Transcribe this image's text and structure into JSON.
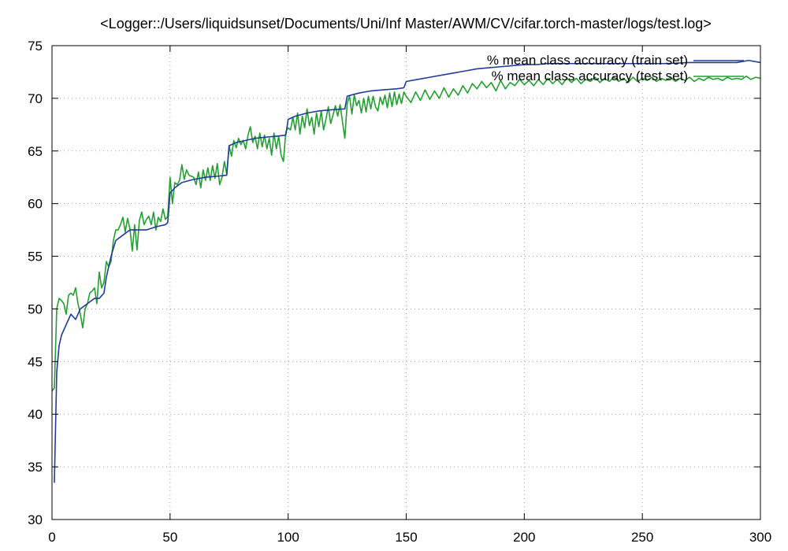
{
  "chart_data": {
    "type": "line",
    "title": "<Logger::/Users/liquidsunset/Documents/Uni/Inf Master/AWM/CV/cifar.torch-master/logs/test.log>",
    "xlabel": "",
    "ylabel": "",
    "xlim": [
      0,
      300
    ],
    "ylim": [
      30,
      75
    ],
    "xticks": [
      0,
      50,
      100,
      150,
      200,
      250,
      300
    ],
    "yticks": [
      30,
      35,
      40,
      45,
      50,
      55,
      60,
      65,
      70,
      75
    ],
    "grid": true,
    "legend_position": "top-right",
    "series": [
      {
        "name": "% mean class accuracy (train set)",
        "color": "#1f3d99",
        "points": [
          [
            1,
            33.5
          ],
          [
            2,
            44
          ],
          [
            3,
            46.5
          ],
          [
            4,
            47.5
          ],
          [
            6,
            48.5
          ],
          [
            8,
            49.5
          ],
          [
            10,
            49
          ],
          [
            12,
            50
          ],
          [
            15,
            50.5
          ],
          [
            18,
            51
          ],
          [
            20,
            51
          ],
          [
            22,
            51.5
          ],
          [
            23,
            53
          ],
          [
            25,
            55
          ],
          [
            27,
            56.5
          ],
          [
            30,
            57
          ],
          [
            33,
            57.5
          ],
          [
            36,
            57.5
          ],
          [
            40,
            57.5
          ],
          [
            44,
            57.8
          ],
          [
            48,
            58
          ],
          [
            49,
            58.2
          ],
          [
            50,
            61
          ],
          [
            52,
            61.5
          ],
          [
            55,
            62
          ],
          [
            60,
            62.3
          ],
          [
            65,
            62.5
          ],
          [
            70,
            62.6
          ],
          [
            74,
            62.7
          ],
          [
            75,
            65.5
          ],
          [
            78,
            65.8
          ],
          [
            82,
            66
          ],
          [
            86,
            66.2
          ],
          [
            90,
            66.3
          ],
          [
            95,
            66.4
          ],
          [
            99,
            66.5
          ],
          [
            100,
            68
          ],
          [
            103,
            68.3
          ],
          [
            108,
            68.6
          ],
          [
            113,
            68.8
          ],
          [
            118,
            68.9
          ],
          [
            124,
            69
          ],
          [
            125,
            70.2
          ],
          [
            130,
            70.5
          ],
          [
            135,
            70.7
          ],
          [
            140,
            70.8
          ],
          [
            146,
            70.9
          ],
          [
            149,
            71
          ],
          [
            150,
            71.6
          ],
          [
            155,
            71.8
          ],
          [
            160,
            72
          ],
          [
            165,
            72.2
          ],
          [
            170,
            72.4
          ],
          [
            175,
            72.6
          ],
          [
            180,
            72.8
          ],
          [
            185,
            72.9
          ],
          [
            190,
            73
          ],
          [
            195,
            73.1
          ],
          [
            200,
            73.2
          ],
          [
            205,
            73.2
          ],
          [
            210,
            73.3
          ],
          [
            220,
            73.3
          ],
          [
            230,
            73.3
          ],
          [
            240,
            73.3
          ],
          [
            250,
            73.3
          ],
          [
            260,
            73.3
          ],
          [
            270,
            73.4
          ],
          [
            280,
            73.4
          ],
          [
            290,
            73.4
          ],
          [
            295,
            73.6
          ],
          [
            300,
            73.4
          ]
        ]
      },
      {
        "name": "% mean class accuracy (test set)",
        "color": "#22a030",
        "points": [
          [
            0,
            42.2
          ],
          [
            1,
            42.5
          ],
          [
            2,
            50
          ],
          [
            3,
            51
          ],
          [
            4,
            50.8
          ],
          [
            5,
            50.5
          ],
          [
            6,
            49.5
          ],
          [
            7,
            51.3
          ],
          [
            8,
            51.5
          ],
          [
            9,
            51.3
          ],
          [
            10,
            52
          ],
          [
            11,
            50.5
          ],
          [
            12,
            49.5
          ],
          [
            13,
            48.2
          ],
          [
            14,
            50
          ],
          [
            15,
            50.5
          ],
          [
            16,
            51.5
          ],
          [
            17,
            51.7
          ],
          [
            18,
            52
          ],
          [
            19,
            50.5
          ],
          [
            20,
            53.5
          ],
          [
            21,
            52
          ],
          [
            22,
            52.5
          ],
          [
            23,
            54.5
          ],
          [
            24,
            54
          ],
          [
            25,
            54.5
          ],
          [
            26,
            56.5
          ],
          [
            27,
            57.5
          ],
          [
            28,
            57.5
          ],
          [
            29,
            58
          ],
          [
            30,
            58.7
          ],
          [
            31,
            57.3
          ],
          [
            32,
            58.6
          ],
          [
            33,
            57.6
          ],
          [
            34,
            55.5
          ],
          [
            35,
            58
          ],
          [
            36,
            55.6
          ],
          [
            37,
            58.4
          ],
          [
            38,
            59.2
          ],
          [
            39,
            58
          ],
          [
            40,
            58.5
          ],
          [
            41,
            58.8
          ],
          [
            42,
            58
          ],
          [
            43,
            59.2
          ],
          [
            44,
            57.5
          ],
          [
            45,
            58.7
          ],
          [
            46,
            58.3
          ],
          [
            47,
            59.5
          ],
          [
            48,
            58.5
          ],
          [
            49,
            58.8
          ],
          [
            50,
            62.5
          ],
          [
            51,
            60
          ],
          [
            52,
            62
          ],
          [
            53,
            61.8
          ],
          [
            54,
            62.2
          ],
          [
            55,
            63.7
          ],
          [
            56,
            62.3
          ],
          [
            57,
            63.2
          ],
          [
            58,
            62.7
          ],
          [
            59,
            62.6
          ],
          [
            60,
            62.5
          ],
          [
            61,
            61.8
          ],
          [
            62,
            63
          ],
          [
            63,
            61.5
          ],
          [
            64,
            63.2
          ],
          [
            65,
            62.2
          ],
          [
            66,
            63.4
          ],
          [
            67,
            62.2
          ],
          [
            68,
            63.6
          ],
          [
            69,
            62.4
          ],
          [
            70,
            63.8
          ],
          [
            71,
            61.8
          ],
          [
            72,
            62.5
          ],
          [
            73,
            64
          ],
          [
            74,
            62.8
          ],
          [
            75,
            65.5
          ],
          [
            76,
            64.5
          ],
          [
            77,
            66
          ],
          [
            78,
            65.3
          ],
          [
            79,
            66.2
          ],
          [
            80,
            65.6
          ],
          [
            81,
            66
          ],
          [
            82,
            65.2
          ],
          [
            83,
            66.5
          ],
          [
            84,
            67.3
          ],
          [
            85,
            65.8
          ],
          [
            86,
            66.4
          ],
          [
            87,
            65.2
          ],
          [
            88,
            66.7
          ],
          [
            89,
            65.4
          ],
          [
            90,
            66.5
          ],
          [
            91,
            65.2
          ],
          [
            92,
            66.2
          ],
          [
            93,
            64.6
          ],
          [
            94,
            66.7
          ],
          [
            95,
            65.2
          ],
          [
            96,
            66.4
          ],
          [
            97,
            64.6
          ],
          [
            98,
            64
          ],
          [
            99,
            66.8
          ],
          [
            100,
            67.2
          ],
          [
            101,
            67
          ],
          [
            102,
            68.2
          ],
          [
            103,
            67
          ],
          [
            104,
            68.6
          ],
          [
            105,
            66.6
          ],
          [
            106,
            68.3
          ],
          [
            107,
            67.2
          ],
          [
            108,
            69
          ],
          [
            109,
            67.4
          ],
          [
            110,
            68.2
          ],
          [
            111,
            66.6
          ],
          [
            112,
            68.6
          ],
          [
            113,
            67.3
          ],
          [
            114,
            68.8
          ],
          [
            115,
            67
          ],
          [
            116,
            68
          ],
          [
            117,
            69.2
          ],
          [
            118,
            67.6
          ],
          [
            119,
            68.4
          ],
          [
            120,
            69.3
          ],
          [
            121,
            68.3
          ],
          [
            122,
            69.4
          ],
          [
            123,
            67.8
          ],
          [
            124,
            66.2
          ],
          [
            125,
            69.5
          ],
          [
            126,
            70.2
          ],
          [
            127,
            68.5
          ],
          [
            128,
            70.3
          ],
          [
            129,
            69.3
          ],
          [
            130,
            69.8
          ],
          [
            131,
            68.6
          ],
          [
            132,
            70
          ],
          [
            133,
            68.7
          ],
          [
            134,
            70.2
          ],
          [
            135,
            69
          ],
          [
            136,
            70.2
          ],
          [
            137,
            69.2
          ],
          [
            138,
            68.8
          ],
          [
            139,
            70.1
          ],
          [
            140,
            69.4
          ],
          [
            141,
            70.3
          ],
          [
            142,
            69.1
          ],
          [
            143,
            70.5
          ],
          [
            144,
            69.2
          ],
          [
            145,
            70.6
          ],
          [
            146,
            69.4
          ],
          [
            147,
            70.4
          ],
          [
            148,
            69.5
          ],
          [
            149,
            70.6
          ],
          [
            150,
            70.2
          ],
          [
            152,
            69.6
          ],
          [
            154,
            70.6
          ],
          [
            156,
            69.8
          ],
          [
            158,
            70.8
          ],
          [
            160,
            69.9
          ],
          [
            162,
            70.7
          ],
          [
            164,
            70
          ],
          [
            166,
            71
          ],
          [
            168,
            70.1
          ],
          [
            170,
            70.9
          ],
          [
            172,
            70.3
          ],
          [
            174,
            71.2
          ],
          [
            176,
            70.5
          ],
          [
            178,
            71.4
          ],
          [
            180,
            70.9
          ],
          [
            182,
            71.6
          ],
          [
            184,
            71
          ],
          [
            186,
            71.5
          ],
          [
            188,
            70.7
          ],
          [
            190,
            71.7
          ],
          [
            192,
            70.9
          ],
          [
            194,
            71.5
          ],
          [
            196,
            71.2
          ],
          [
            198,
            71.8
          ],
          [
            200,
            71.3
          ],
          [
            202,
            71.7
          ],
          [
            204,
            71.2
          ],
          [
            206,
            71.8
          ],
          [
            208,
            71.3
          ],
          [
            210,
            71.9
          ],
          [
            212,
            71.4
          ],
          [
            214,
            71.8
          ],
          [
            216,
            71.3
          ],
          [
            218,
            71.9
          ],
          [
            220,
            71.5
          ],
          [
            222,
            71.9
          ],
          [
            224,
            71.4
          ],
          [
            226,
            71.8
          ],
          [
            228,
            71.6
          ],
          [
            230,
            72
          ],
          [
            232,
            71.5
          ],
          [
            234,
            71.9
          ],
          [
            236,
            71.6
          ],
          [
            238,
            72
          ],
          [
            240,
            71.6
          ],
          [
            242,
            71.9
          ],
          [
            244,
            71.5
          ],
          [
            246,
            72
          ],
          [
            248,
            71.6
          ],
          [
            250,
            71.9
          ],
          [
            252,
            71.7
          ],
          [
            254,
            72
          ],
          [
            256,
            71.6
          ],
          [
            258,
            71.9
          ],
          [
            260,
            71.7
          ],
          [
            262,
            72
          ],
          [
            264,
            71.6
          ],
          [
            266,
            71.9
          ],
          [
            268,
            71.7
          ],
          [
            270,
            72
          ],
          [
            272,
            71.6
          ],
          [
            274,
            71.9
          ],
          [
            276,
            71.7
          ],
          [
            278,
            72
          ],
          [
            280,
            71.8
          ],
          [
            282,
            71.9
          ],
          [
            284,
            71.7
          ],
          [
            286,
            72
          ],
          [
            288,
            71.8
          ],
          [
            290,
            71.9
          ],
          [
            292,
            71.8
          ],
          [
            294,
            72.1
          ],
          [
            296,
            71.8
          ],
          [
            298,
            72
          ],
          [
            300,
            71.9
          ]
        ]
      }
    ]
  }
}
